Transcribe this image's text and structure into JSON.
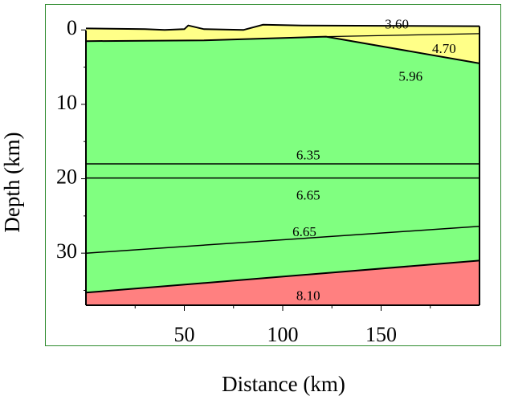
{
  "figure": {
    "x_title": "Distance (km)",
    "y_title": "Depth (km)",
    "x_ticks": [
      {
        "value": 50,
        "label": "50"
      },
      {
        "value": 100,
        "label": "100"
      },
      {
        "value": 150,
        "label": "150"
      }
    ],
    "x_minor_ticks": [
      25,
      75,
      125,
      175
    ],
    "y_ticks": [
      {
        "value": 0,
        "label": "0"
      },
      {
        "value": 10,
        "label": "10"
      },
      {
        "value": 20,
        "label": "20"
      },
      {
        "value": 30,
        "label": "30"
      }
    ],
    "y_minor_ticks": [
      5,
      15,
      25,
      35
    ],
    "x_range": [
      0,
      200
    ],
    "y_range": [
      -1,
      37
    ],
    "colors": {
      "sediment": "#ffff88",
      "crust": "#80ff80",
      "mantle": "#ff8080",
      "frame": "#2e8b2e",
      "line": "#000000"
    }
  },
  "chart_data": {
    "type": "cross-section",
    "surface": [
      [
        0,
        -0.2
      ],
      [
        30,
        -0.1
      ],
      [
        40,
        0.0
      ],
      [
        50,
        -0.1
      ],
      [
        52,
        -0.6
      ],
      [
        60,
        -0.1
      ],
      [
        80,
        0.0
      ],
      [
        90,
        -0.7
      ],
      [
        110,
        -0.6
      ],
      [
        200,
        -0.5
      ]
    ],
    "boundaries": [
      {
        "id": "b1",
        "points": [
          [
            0,
            1.5
          ],
          [
            60,
            1.4
          ],
          [
            122,
            0.9
          ],
          [
            200,
            4.5
          ]
        ],
        "width": 2
      },
      {
        "id": "b2",
        "points": [
          [
            122,
            0.9
          ],
          [
            200,
            0.5
          ]
        ],
        "width": 1.2
      },
      {
        "id": "b3",
        "points": [
          [
            0,
            18.0
          ],
          [
            200,
            18.0
          ]
        ],
        "width": 1.5
      },
      {
        "id": "b4",
        "points": [
          [
            0,
            19.9
          ],
          [
            200,
            19.9
          ]
        ],
        "width": 1.5
      },
      {
        "id": "b5",
        "points": [
          [
            0,
            30.0
          ],
          [
            200,
            26.4
          ]
        ],
        "width": 1.5
      },
      {
        "id": "b6",
        "points": [
          [
            0,
            35.3
          ],
          [
            200,
            31.0
          ]
        ],
        "width": 2
      },
      {
        "id": "b7",
        "points": [
          [
            0,
            37.0
          ],
          [
            200,
            37.0
          ]
        ],
        "width": 2
      }
    ],
    "layers": [
      {
        "name": "sediment",
        "velocity": "3.60",
        "label_at": [
          158,
          -0.6
        ]
      },
      {
        "name": "wedge",
        "velocity": "4.70",
        "label_at": [
          182,
          2.7
        ]
      },
      {
        "name": "upper-crust",
        "velocity": "5.96",
        "label_at": [
          165,
          6.4
        ]
      },
      {
        "name": "upper-crust-base",
        "velocity": "6.35",
        "label_at": [
          113,
          17.0
        ]
      },
      {
        "name": "thin-layer",
        "velocity": "6.65",
        "label_at": [
          113,
          22.4
        ]
      },
      {
        "name": "lower-crust",
        "velocity": "6.65",
        "label_at": [
          111,
          27.3
        ]
      },
      {
        "name": "mantle",
        "velocity": "8.10",
        "label_at": [
          113,
          35.9
        ]
      }
    ]
  }
}
